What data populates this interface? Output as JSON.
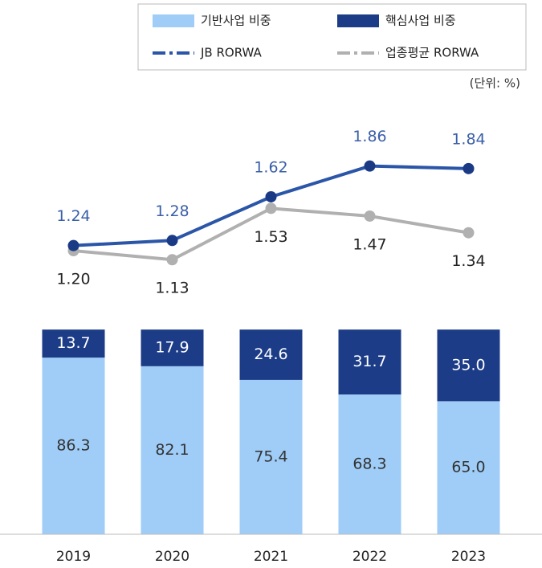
{
  "chart_data": {
    "type": "bar",
    "unit_note": "(단위: %)",
    "categories": [
      "2019",
      "2020",
      "2021",
      "2022",
      "2023"
    ],
    "ylim": [
      0,
      210
    ],
    "y2lim": [
      -1.01,
      2.34
    ],
    "series": [
      {
        "name": "기반사업 비중",
        "type": "bar",
        "color": "#9fcdf7",
        "label_color": "#333333",
        "values": [
          86.3,
          82.1,
          75.4,
          68.3,
          65.0
        ],
        "value_labels": [
          "86.3",
          "82.1",
          "75.4",
          "68.3",
          "65.0"
        ]
      },
      {
        "name": "핵심사업 비중",
        "type": "bar",
        "color": "#1c3c87",
        "label_color": "#ffffff",
        "values": [
          13.7,
          17.9,
          24.6,
          31.7,
          35.0
        ],
        "value_labels": [
          "13.7",
          "17.9",
          "24.6",
          "31.7",
          "35.0"
        ]
      },
      {
        "name": "JB RORWA",
        "type": "line",
        "axis": "y2",
        "color": "#2b56a8",
        "marker_color": "#1a3a85",
        "label_color": "#3a5fa8",
        "label_side": "above",
        "values": [
          1.24,
          1.28,
          1.62,
          1.86,
          1.84
        ],
        "value_labels": [
          "1.24",
          "1.28",
          "1.62",
          "1.86",
          "1.84"
        ]
      },
      {
        "name": "업종평균 RORWA",
        "type": "line",
        "axis": "y2",
        "color": "#b0b0b0",
        "marker_color": "#b0b0b0",
        "label_color": "#222222",
        "label_side": "below",
        "values": [
          1.2,
          1.13,
          1.53,
          1.47,
          1.34
        ],
        "value_labels": [
          "1.20",
          "1.13",
          "1.53",
          "1.47",
          "1.34"
        ]
      }
    ]
  }
}
